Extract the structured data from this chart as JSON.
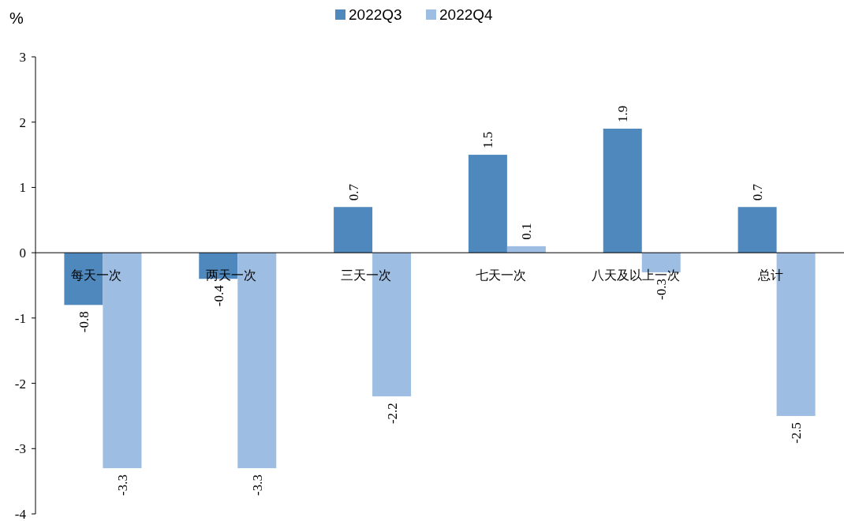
{
  "chart_data": {
    "type": "bar",
    "ylabel": "%",
    "categories": [
      "每天一次",
      "两天一次",
      "三天一次",
      "七天一次",
      "八天及以上一次",
      "总计"
    ],
    "series": [
      {
        "name": "2022Q3",
        "color": "#4f88bd",
        "values": [
          -0.8,
          -0.4,
          0.7,
          1.5,
          1.9,
          0.7
        ]
      },
      {
        "name": "2022Q4",
        "color": "#9dbde2",
        "values": [
          -3.3,
          -3.3,
          -2.2,
          0.1,
          -0.3,
          -2.5
        ]
      }
    ],
    "ylim": [
      -4,
      3
    ],
    "yticks": [
      -4,
      -3,
      -2,
      -1,
      0,
      1,
      2,
      3
    ],
    "data_labels": true,
    "legend": "top",
    "grid": false
  }
}
